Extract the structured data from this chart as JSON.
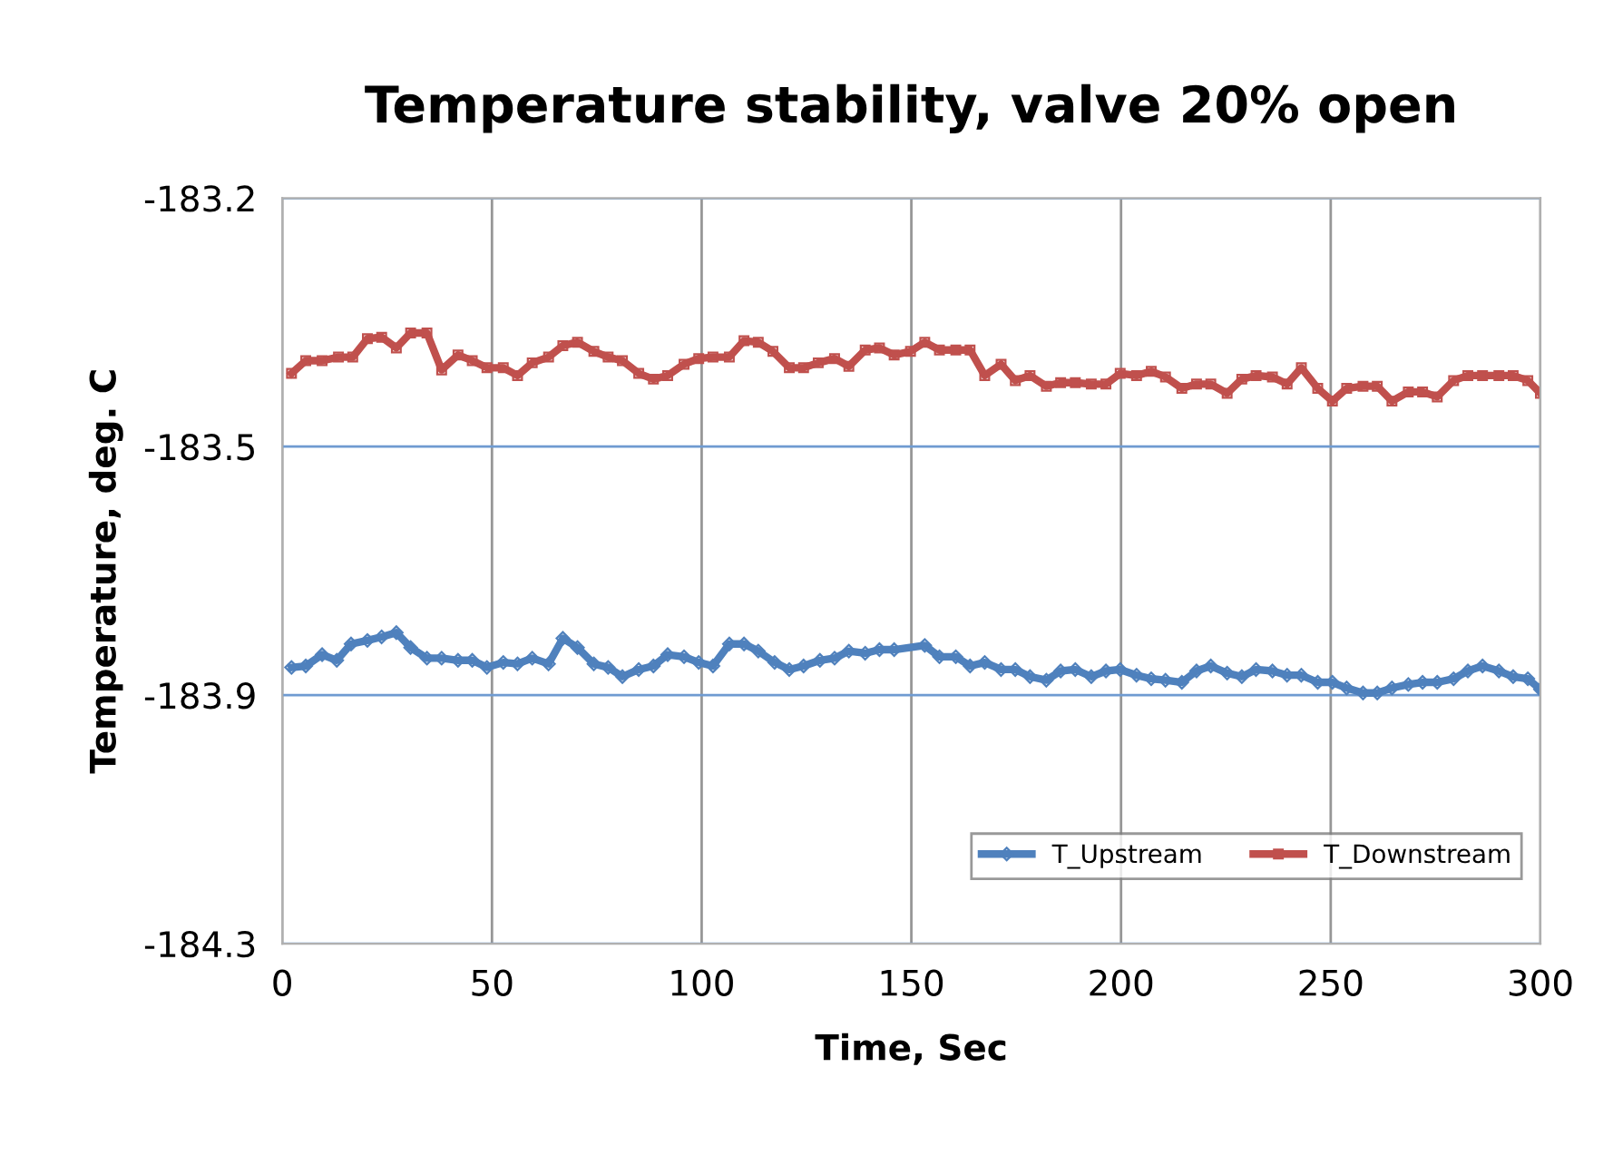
{
  "chart_data": {
    "type": "line",
    "title": "Temperature stability, valve 20% open",
    "xlabel": "Time, Sec",
    "ylabel": "Temperature, deg. C",
    "xlim": [
      0,
      300
    ],
    "xticks": [
      0,
      50,
      100,
      150,
      200,
      250,
      300
    ],
    "ylim": [
      -184.25,
      -183.2
    ],
    "yticks": [
      {
        "value": -184.25,
        "label": "-184.3"
      },
      {
        "value": -183.9,
        "label": "-183.9"
      },
      {
        "value": -183.55,
        "label": "-183.5"
      },
      {
        "value": -183.2,
        "label": "-183.2"
      }
    ],
    "grid": true,
    "legend": "bottom right",
    "series": [
      {
        "name": "T_Upstream",
        "color": "#4f81bd",
        "marker": "diamond",
        "x": [
          2.2,
          5.6,
          9.5,
          13.0,
          16.4,
          20.3,
          23.7,
          27.2,
          30.6,
          34.5,
          38,
          41.9,
          45.3,
          48.8,
          52.7,
          56.1,
          59.6,
          63.5,
          66.9,
          70.4,
          74.3,
          77.7,
          81.1,
          85,
          88.5,
          91.9,
          95.8,
          99.3,
          102.7,
          106.6,
          110.1,
          113.5,
          117.4,
          120.9,
          124.3,
          128.2,
          131.7,
          135.1,
          139,
          142.4,
          145.9,
          153.2,
          156.7,
          160.6,
          164,
          167.5,
          171.4,
          174.8,
          178.3,
          182.2,
          185.6,
          189.1,
          192.9,
          196.4,
          199.8,
          203.7,
          207.2,
          210.6,
          214.5,
          218,
          221.4,
          225.3,
          228.8,
          232.2,
          236.1,
          239.6,
          243,
          246.9,
          250.4,
          253.8,
          257.7,
          261.1,
          264.6,
          268.5,
          271.9,
          275.4,
          279.3,
          282.7,
          286.2,
          290.1,
          293.5,
          297,
          300
        ],
        "values": [
          -183.861,
          -183.859,
          -183.843,
          -183.851,
          -183.828,
          -183.823,
          -183.818,
          -183.812,
          -183.833,
          -183.848,
          -183.848,
          -183.851,
          -183.851,
          -183.861,
          -183.854,
          -183.856,
          -183.848,
          -183.856,
          -183.82,
          -183.833,
          -183.856,
          -183.861,
          -183.874,
          -183.864,
          -183.859,
          -183.843,
          -183.846,
          -183.854,
          -183.859,
          -183.828,
          -183.828,
          -183.838,
          -183.854,
          -183.864,
          -183.859,
          -183.851,
          -183.848,
          -183.838,
          -183.841,
          -183.836,
          -183.836,
          -183.83,
          -183.846,
          -183.846,
          -183.859,
          -183.854,
          -183.864,
          -183.864,
          -183.874,
          -183.879,
          -183.866,
          -183.864,
          -183.874,
          -183.866,
          -183.864,
          -183.872,
          -183.877,
          -183.879,
          -183.882,
          -183.866,
          -183.859,
          -183.869,
          -183.874,
          -183.864,
          -183.866,
          -183.872,
          -183.872,
          -183.882,
          -183.882,
          -183.89,
          -183.897,
          -183.897,
          -183.89,
          -183.885,
          -183.882,
          -183.882,
          -183.877,
          -183.866,
          -183.859,
          -183.866,
          -183.874,
          -183.877,
          -183.892
        ]
      },
      {
        "name": "T_Downstream",
        "color": "#c0504d",
        "marker": "square",
        "x": [
          2.2,
          5.6,
          9.5,
          13.4,
          16.8,
          20.3,
          23.7,
          27.2,
          30.6,
          34.5,
          38,
          41.9,
          45.3,
          48.8,
          52.7,
          56.1,
          59.6,
          63.5,
          66.9,
          70.4,
          74.3,
          77.7,
          81.1,
          85,
          88.5,
          91.9,
          95.8,
          99.3,
          102.7,
          106.6,
          110.1,
          113.5,
          117,
          120.9,
          124.3,
          127.8,
          131.7,
          135.1,
          139,
          142.4,
          145.9,
          149.8,
          153.2,
          156.7,
          160.6,
          164,
          167.5,
          171.4,
          174.8,
          178.3,
          182.2,
          185.6,
          189.1,
          192.9,
          196.4,
          199.8,
          203.7,
          207.2,
          210.6,
          214.5,
          218,
          221.4,
          225.3,
          228.8,
          232.2,
          236.1,
          239.6,
          243,
          246.9,
          250.4,
          253.8,
          257.7,
          261.1,
          264.6,
          268.5,
          271.9,
          275.4,
          279.3,
          282.7,
          286.2,
          290.1,
          293.5,
          297,
          300
        ],
        "values": [
          -183.447,
          -183.429,
          -183.429,
          -183.424,
          -183.424,
          -183.398,
          -183.396,
          -183.411,
          -183.39,
          -183.39,
          -183.442,
          -183.421,
          -183.429,
          -183.439,
          -183.439,
          -183.45,
          -183.432,
          -183.424,
          -183.408,
          -183.403,
          -183.416,
          -183.424,
          -183.429,
          -183.447,
          -183.455,
          -183.45,
          -183.434,
          -183.426,
          -183.424,
          -183.424,
          -183.401,
          -183.403,
          -183.416,
          -183.439,
          -183.439,
          -183.432,
          -183.426,
          -183.437,
          -183.414,
          -183.411,
          -183.421,
          -183.416,
          -183.403,
          -183.414,
          -183.414,
          -183.414,
          -183.45,
          -183.434,
          -183.457,
          -183.45,
          -183.465,
          -183.46,
          -183.46,
          -183.462,
          -183.462,
          -183.447,
          -183.45,
          -183.444,
          -183.452,
          -183.468,
          -183.462,
          -183.462,
          -183.475,
          -183.455,
          -183.45,
          -183.452,
          -183.462,
          -183.439,
          -183.468,
          -183.486,
          -183.468,
          -183.465,
          -183.465,
          -183.486,
          -183.473,
          -183.473,
          -183.48,
          -183.457,
          -183.45,
          -183.45,
          -183.45,
          -183.45,
          -183.457,
          -183.475
        ]
      }
    ]
  }
}
